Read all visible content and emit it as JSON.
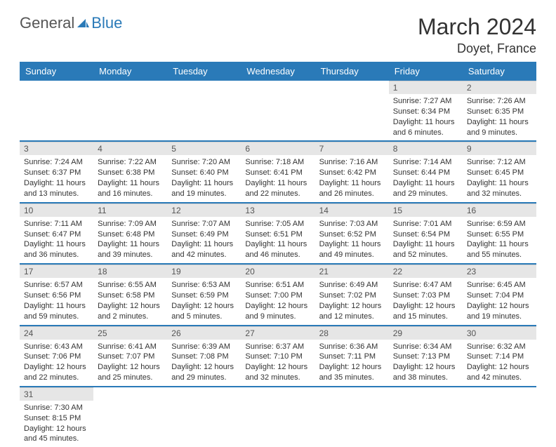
{
  "logo": {
    "text1": "General",
    "text2": "Blue"
  },
  "title": "March 2024",
  "location": "Doyet, France",
  "colors": {
    "header_bg": "#2a7ab8",
    "header_text": "#ffffff",
    "daynum_bg": "#e6e6e6",
    "daynum_text": "#555555",
    "body_text": "#333333",
    "separator": "#2a7ab8"
  },
  "weekdays": [
    "Sunday",
    "Monday",
    "Tuesday",
    "Wednesday",
    "Thursday",
    "Friday",
    "Saturday"
  ],
  "weeks": [
    [
      null,
      null,
      null,
      null,
      null,
      {
        "n": "1",
        "sunrise": "Sunrise: 7:27 AM",
        "sunset": "Sunset: 6:34 PM",
        "daylight": "Daylight: 11 hours and 6 minutes."
      },
      {
        "n": "2",
        "sunrise": "Sunrise: 7:26 AM",
        "sunset": "Sunset: 6:35 PM",
        "daylight": "Daylight: 11 hours and 9 minutes."
      }
    ],
    [
      {
        "n": "3",
        "sunrise": "Sunrise: 7:24 AM",
        "sunset": "Sunset: 6:37 PM",
        "daylight": "Daylight: 11 hours and 13 minutes."
      },
      {
        "n": "4",
        "sunrise": "Sunrise: 7:22 AM",
        "sunset": "Sunset: 6:38 PM",
        "daylight": "Daylight: 11 hours and 16 minutes."
      },
      {
        "n": "5",
        "sunrise": "Sunrise: 7:20 AM",
        "sunset": "Sunset: 6:40 PM",
        "daylight": "Daylight: 11 hours and 19 minutes."
      },
      {
        "n": "6",
        "sunrise": "Sunrise: 7:18 AM",
        "sunset": "Sunset: 6:41 PM",
        "daylight": "Daylight: 11 hours and 22 minutes."
      },
      {
        "n": "7",
        "sunrise": "Sunrise: 7:16 AM",
        "sunset": "Sunset: 6:42 PM",
        "daylight": "Daylight: 11 hours and 26 minutes."
      },
      {
        "n": "8",
        "sunrise": "Sunrise: 7:14 AM",
        "sunset": "Sunset: 6:44 PM",
        "daylight": "Daylight: 11 hours and 29 minutes."
      },
      {
        "n": "9",
        "sunrise": "Sunrise: 7:12 AM",
        "sunset": "Sunset: 6:45 PM",
        "daylight": "Daylight: 11 hours and 32 minutes."
      }
    ],
    [
      {
        "n": "10",
        "sunrise": "Sunrise: 7:11 AM",
        "sunset": "Sunset: 6:47 PM",
        "daylight": "Daylight: 11 hours and 36 minutes."
      },
      {
        "n": "11",
        "sunrise": "Sunrise: 7:09 AM",
        "sunset": "Sunset: 6:48 PM",
        "daylight": "Daylight: 11 hours and 39 minutes."
      },
      {
        "n": "12",
        "sunrise": "Sunrise: 7:07 AM",
        "sunset": "Sunset: 6:49 PM",
        "daylight": "Daylight: 11 hours and 42 minutes."
      },
      {
        "n": "13",
        "sunrise": "Sunrise: 7:05 AM",
        "sunset": "Sunset: 6:51 PM",
        "daylight": "Daylight: 11 hours and 46 minutes."
      },
      {
        "n": "14",
        "sunrise": "Sunrise: 7:03 AM",
        "sunset": "Sunset: 6:52 PM",
        "daylight": "Daylight: 11 hours and 49 minutes."
      },
      {
        "n": "15",
        "sunrise": "Sunrise: 7:01 AM",
        "sunset": "Sunset: 6:54 PM",
        "daylight": "Daylight: 11 hours and 52 minutes."
      },
      {
        "n": "16",
        "sunrise": "Sunrise: 6:59 AM",
        "sunset": "Sunset: 6:55 PM",
        "daylight": "Daylight: 11 hours and 55 minutes."
      }
    ],
    [
      {
        "n": "17",
        "sunrise": "Sunrise: 6:57 AM",
        "sunset": "Sunset: 6:56 PM",
        "daylight": "Daylight: 11 hours and 59 minutes."
      },
      {
        "n": "18",
        "sunrise": "Sunrise: 6:55 AM",
        "sunset": "Sunset: 6:58 PM",
        "daylight": "Daylight: 12 hours and 2 minutes."
      },
      {
        "n": "19",
        "sunrise": "Sunrise: 6:53 AM",
        "sunset": "Sunset: 6:59 PM",
        "daylight": "Daylight: 12 hours and 5 minutes."
      },
      {
        "n": "20",
        "sunrise": "Sunrise: 6:51 AM",
        "sunset": "Sunset: 7:00 PM",
        "daylight": "Daylight: 12 hours and 9 minutes."
      },
      {
        "n": "21",
        "sunrise": "Sunrise: 6:49 AM",
        "sunset": "Sunset: 7:02 PM",
        "daylight": "Daylight: 12 hours and 12 minutes."
      },
      {
        "n": "22",
        "sunrise": "Sunrise: 6:47 AM",
        "sunset": "Sunset: 7:03 PM",
        "daylight": "Daylight: 12 hours and 15 minutes."
      },
      {
        "n": "23",
        "sunrise": "Sunrise: 6:45 AM",
        "sunset": "Sunset: 7:04 PM",
        "daylight": "Daylight: 12 hours and 19 minutes."
      }
    ],
    [
      {
        "n": "24",
        "sunrise": "Sunrise: 6:43 AM",
        "sunset": "Sunset: 7:06 PM",
        "daylight": "Daylight: 12 hours and 22 minutes."
      },
      {
        "n": "25",
        "sunrise": "Sunrise: 6:41 AM",
        "sunset": "Sunset: 7:07 PM",
        "daylight": "Daylight: 12 hours and 25 minutes."
      },
      {
        "n": "26",
        "sunrise": "Sunrise: 6:39 AM",
        "sunset": "Sunset: 7:08 PM",
        "daylight": "Daylight: 12 hours and 29 minutes."
      },
      {
        "n": "27",
        "sunrise": "Sunrise: 6:37 AM",
        "sunset": "Sunset: 7:10 PM",
        "daylight": "Daylight: 12 hours and 32 minutes."
      },
      {
        "n": "28",
        "sunrise": "Sunrise: 6:36 AM",
        "sunset": "Sunset: 7:11 PM",
        "daylight": "Daylight: 12 hours and 35 minutes."
      },
      {
        "n": "29",
        "sunrise": "Sunrise: 6:34 AM",
        "sunset": "Sunset: 7:13 PM",
        "daylight": "Daylight: 12 hours and 38 minutes."
      },
      {
        "n": "30",
        "sunrise": "Sunrise: 6:32 AM",
        "sunset": "Sunset: 7:14 PM",
        "daylight": "Daylight: 12 hours and 42 minutes."
      }
    ],
    [
      {
        "n": "31",
        "sunrise": "Sunrise: 7:30 AM",
        "sunset": "Sunset: 8:15 PM",
        "daylight": "Daylight: 12 hours and 45 minutes."
      },
      null,
      null,
      null,
      null,
      null,
      null
    ]
  ]
}
